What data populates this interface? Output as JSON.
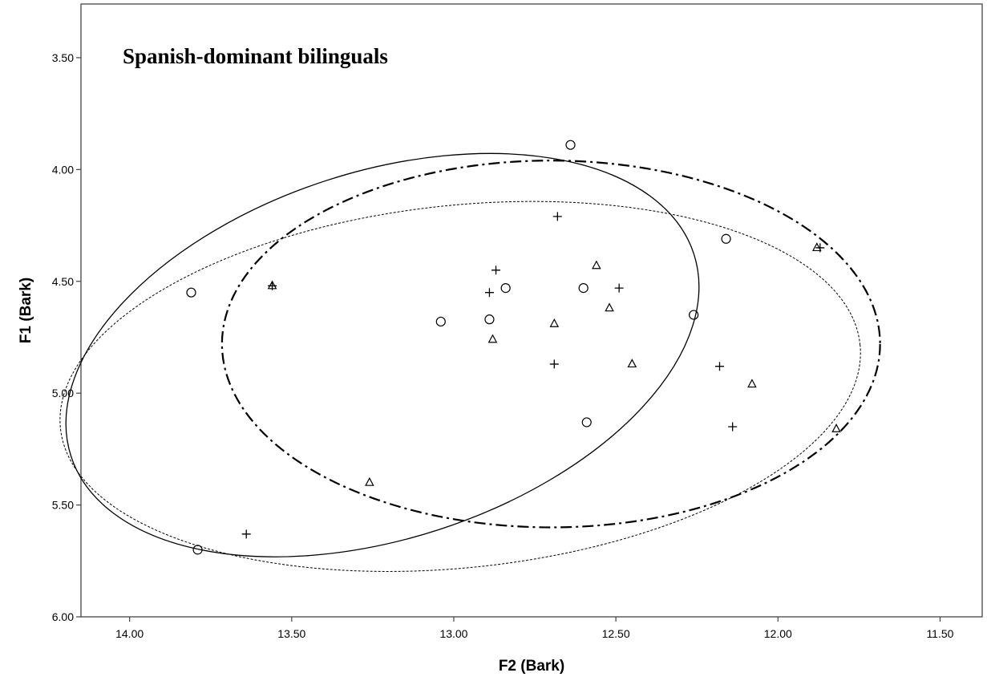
{
  "chart_data": {
    "type": "scatter",
    "title": "Spanish-dominant bilinguals",
    "xlabel": "F2 (Bark)",
    "ylabel": "F1 (Bark)",
    "x_reversed": true,
    "y_reversed": true,
    "xlim": [
      14.15,
      11.37
    ],
    "ylim": [
      3.26,
      6.0
    ],
    "xticks": [
      {
        "value": 14.0,
        "label": "14.00"
      },
      {
        "value": 13.5,
        "label": "13.50"
      },
      {
        "value": 13.0,
        "label": "13.00"
      },
      {
        "value": 12.5,
        "label": "12.50"
      },
      {
        "value": 12.0,
        "label": "12.00"
      },
      {
        "value": 11.5,
        "label": "11.50"
      }
    ],
    "yticks": [
      {
        "value": 3.5,
        "label": "3.50"
      },
      {
        "value": 4.0,
        "label": "4.00"
      },
      {
        "value": 4.5,
        "label": "4.50"
      },
      {
        "value": 5.0,
        "label": "5.00"
      },
      {
        "value": 5.5,
        "label": "5.50"
      },
      {
        "value": 6.0,
        "label": "6.00"
      }
    ],
    "grid": false,
    "legend": "none",
    "series": [
      {
        "marker": "circle",
        "ellipse_style": "solid",
        "points": [
          [
            13.81,
            4.55
          ],
          [
            13.04,
            4.68
          ],
          [
            12.89,
            4.67
          ],
          [
            12.84,
            4.53
          ],
          [
            12.64,
            3.89
          ],
          [
            12.6,
            4.53
          ],
          [
            12.59,
            5.13
          ],
          [
            12.26,
            4.65
          ],
          [
            12.16,
            4.31
          ],
          [
            13.79,
            5.7
          ]
        ],
        "ellipse": {
          "cx": 13.22,
          "cy": 4.83,
          "rx": 1.01,
          "ry": 0.82,
          "angle_deg": -18
        }
      },
      {
        "marker": "triangle",
        "ellipse_style": "dash-dot",
        "points": [
          [
            13.56,
            4.52
          ],
          [
            12.88,
            4.76
          ],
          [
            12.69,
            4.69
          ],
          [
            12.56,
            4.43
          ],
          [
            12.52,
            4.62
          ],
          [
            12.45,
            4.87
          ],
          [
            12.08,
            4.96
          ],
          [
            11.88,
            4.35
          ],
          [
            11.82,
            5.16
          ],
          [
            13.26,
            5.4
          ]
        ],
        "ellipse": {
          "cx": 12.7,
          "cy": 4.78,
          "rx": 1.015,
          "ry": 0.82,
          "angle_deg": 0
        }
      },
      {
        "marker": "plus",
        "ellipse_style": "dotted",
        "points": [
          [
            13.56,
            4.52
          ],
          [
            12.87,
            4.45
          ],
          [
            12.89,
            4.55
          ],
          [
            12.68,
            4.21
          ],
          [
            12.49,
            4.53
          ],
          [
            12.69,
            4.87
          ],
          [
            12.18,
            4.88
          ],
          [
            12.14,
            5.15
          ],
          [
            11.87,
            4.35
          ],
          [
            13.64,
            5.63
          ]
        ],
        "ellipse": {
          "cx": 12.98,
          "cy": 4.97,
          "rx": 1.24,
          "ry": 0.81,
          "angle_deg": -6
        }
      }
    ]
  }
}
